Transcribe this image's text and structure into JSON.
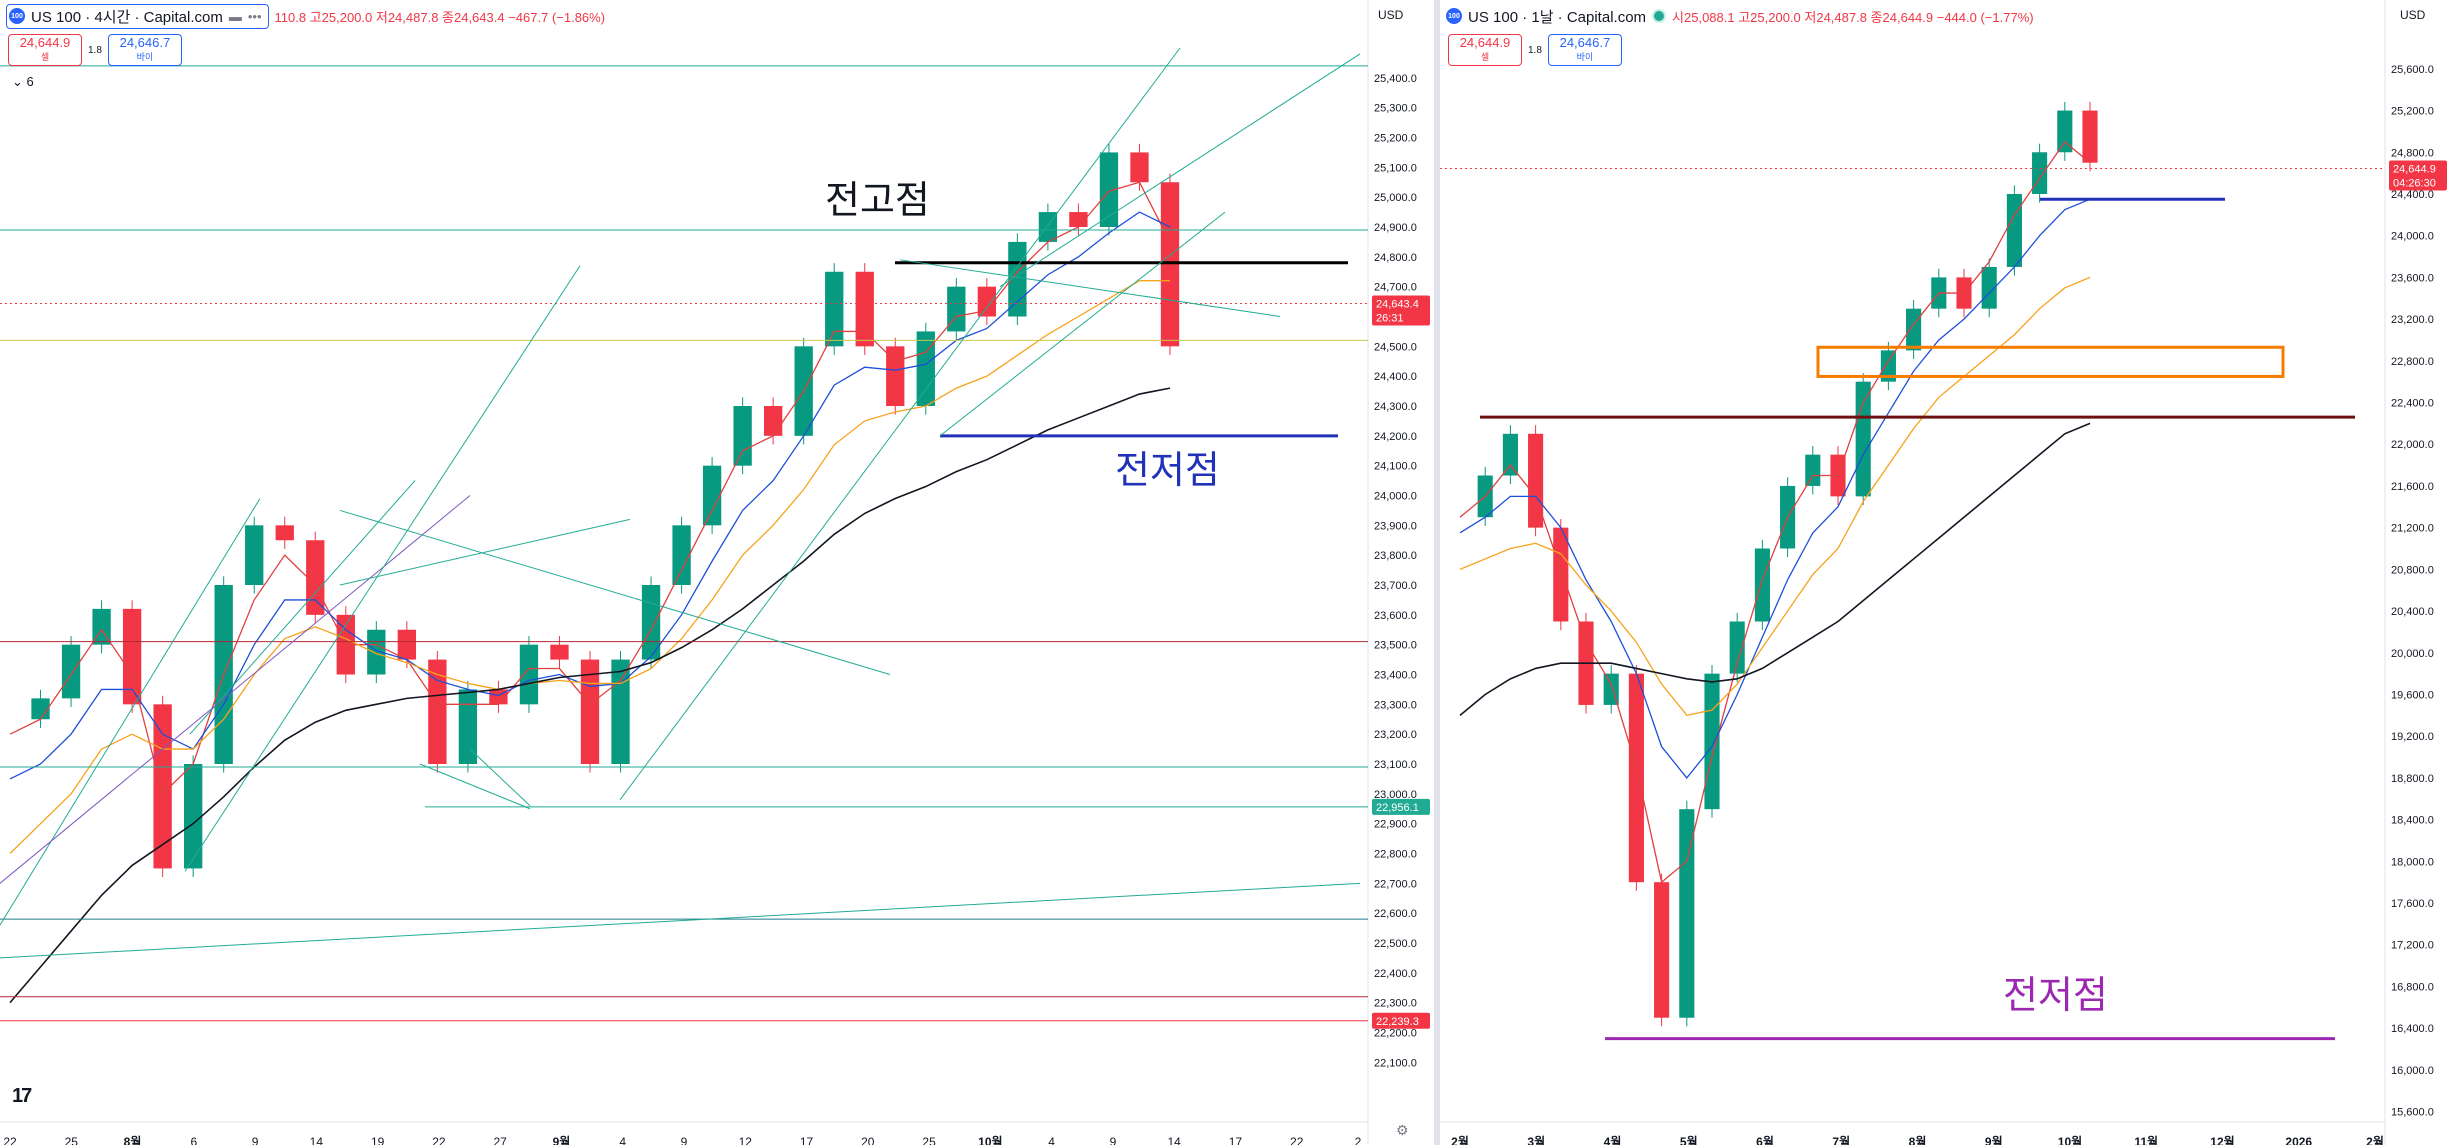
{
  "left": {
    "symbol_icon": "100",
    "title": "US 100 · 4시간 · Capital.com",
    "ohlc_text": "110.8 고25,200.0 저24,487.8 종24,643.4 −467.7 (−1.86%)",
    "sell_price": "24,644.9",
    "sell_label": "셀",
    "spread": "1.8",
    "buy_price": "24,646.7",
    "buy_label": "바이",
    "collapse_label": "6",
    "currency": "USD",
    "tv_logo": "17",
    "annotations": {
      "high": "전고점",
      "low": "전저점"
    },
    "price_badges": [
      {
        "price": "24,643.4",
        "sub": "26:31",
        "color": "#f23645"
      },
      {
        "price": "22,956.1",
        "sub": "",
        "color": "#22ab94"
      },
      {
        "price": "22,239.3",
        "sub": "",
        "color": "#f23645"
      }
    ]
  },
  "right": {
    "symbol_icon": "100",
    "title": "US 100 · 1날 · Capital.com",
    "ohlc_text": "시25,088.1 고25,200.0 저24,487.8 종24,644.9 −444.0 (−1.77%)",
    "sell_price": "24,644.9",
    "sell_label": "셀",
    "spread": "1.8",
    "buy_price": "24,646.7",
    "buy_label": "바이",
    "currency": "USD",
    "annotations": {
      "low": "전저점"
    },
    "price_badges": [
      {
        "price": "24,644.9",
        "sub": "04:26:30",
        "color": "#f23645"
      }
    ]
  },
  "chart_data": [
    {
      "type": "line",
      "title": "US 100 · 4시간 · Capital.com",
      "ylim": [
        21900,
        25500
      ],
      "y_ticks": [
        "25,400.0",
        "25,300.0",
        "25,200.0",
        "25,100.0",
        "25,000.0",
        "24,900.0",
        "24,800.0",
        "24,700.0",
        "24,600.0",
        "24,500.0",
        "24,400.0",
        "24,300.0",
        "24,200.0",
        "24,100.0",
        "24,000.0",
        "23,900.0",
        "23,800.0",
        "23,700.0",
        "23,600.0",
        "23,500.0",
        "23,400.0",
        "23,300.0",
        "23,200.0",
        "23,100.0",
        "23,000.0",
        "22,900.0",
        "22,800.0",
        "22,700.0",
        "22,600.0",
        "22,500.0",
        "22,400.0",
        "22,300.0",
        "22,200.0",
        "22,100.0"
      ],
      "x_ticks": [
        "22",
        "25",
        "8월",
        "6",
        "9",
        "14",
        "19",
        "22",
        "27",
        "9월",
        "4",
        "9",
        "12",
        "17",
        "20",
        "25",
        "10월",
        "4",
        "9",
        "14",
        "17",
        "22",
        "2"
      ],
      "series": [
        {
          "color": "#089981",
          "values": [
            23250,
            23320,
            23500,
            23620,
            23300,
            22750,
            23100,
            23700,
            23900,
            23850,
            23600,
            23400,
            23550,
            23450,
            23100,
            23350,
            23300,
            23500,
            23450,
            23100,
            23450,
            23700,
            23900,
            24100,
            24300,
            24200,
            24500,
            24750,
            24500,
            24300,
            24550,
            24700,
            24600,
            24850,
            24950,
            24900,
            25150,
            25050,
            24500
          ]
        },
        {
          "color": "#e04141",
          "values": [
            23200,
            23250,
            23400,
            23550,
            23400,
            23000,
            23100,
            23400,
            23650,
            23800,
            23700,
            23500,
            23500,
            23450,
            23300,
            23300,
            23300,
            23420,
            23420,
            23300,
            23380,
            23550,
            23750,
            23950,
            24150,
            24200,
            24350,
            24550,
            24550,
            24450,
            24480,
            24600,
            24620,
            24750,
            24850,
            24900,
            25020,
            25050,
            24850
          ]
        },
        {
          "color": "#1e4fd8",
          "values": [
            23050,
            23100,
            23200,
            23350,
            23350,
            23200,
            23150,
            23300,
            23500,
            23650,
            23650,
            23550,
            23480,
            23450,
            23380,
            23350,
            23330,
            23380,
            23400,
            23360,
            23370,
            23460,
            23600,
            23780,
            23950,
            24050,
            24200,
            24370,
            24430,
            24420,
            24440,
            24520,
            24560,
            24650,
            24740,
            24800,
            24880,
            24950,
            24900
          ]
        },
        {
          "color": "#f7a21b",
          "values": [
            22800,
            22900,
            23000,
            23150,
            23200,
            23150,
            23150,
            23250,
            23400,
            23520,
            23560,
            23520,
            23470,
            23440,
            23400,
            23370,
            23350,
            23370,
            23380,
            23370,
            23370,
            23420,
            23520,
            23650,
            23800,
            23900,
            24020,
            24170,
            24250,
            24280,
            24300,
            24360,
            24400,
            24470,
            24540,
            24600,
            24660,
            24720,
            24720
          ]
        },
        {
          "color": "#131722",
          "values": [
            22300,
            22420,
            22540,
            22660,
            22760,
            22830,
            22900,
            22990,
            23090,
            23180,
            23240,
            23280,
            23300,
            23320,
            23330,
            23340,
            23350,
            23370,
            23390,
            23400,
            23410,
            23440,
            23490,
            23550,
            23620,
            23700,
            23780,
            23870,
            23940,
            23990,
            24030,
            24080,
            24120,
            24170,
            24220,
            24260,
            24300,
            24340,
            24360
          ]
        }
      ]
    },
    {
      "type": "line",
      "title": "US 100 · 1날 · Capital.com",
      "ylim": [
        15500,
        25800
      ],
      "y_ticks": [
        "25,600.0",
        "25,200.0",
        "24,800.0",
        "24,400.0",
        "24,000.0",
        "23,600.0",
        "23,200.0",
        "22,800.0",
        "22,400.0",
        "22,000.0",
        "21,600.0",
        "21,200.0",
        "20,800.0",
        "20,400.0",
        "20,000.0",
        "19,600.0",
        "19,200.0",
        "18,800.0",
        "18,400.0",
        "18,000.0",
        "17,600.0",
        "17,200.0",
        "16,800.0",
        "16,400.0",
        "16,000.0",
        "15,600.0"
      ],
      "x_ticks": [
        "2월",
        "3월",
        "4월",
        "5월",
        "6월",
        "7월",
        "8월",
        "9월",
        "10월",
        "11월",
        "12월",
        "2026",
        "2월"
      ],
      "series": [
        {
          "color": "#089981",
          "values": [
            21300,
            21700,
            22100,
            21200,
            20300,
            19500,
            19800,
            17800,
            16500,
            18500,
            19800,
            20300,
            21000,
            21600,
            21900,
            21500,
            22600,
            22900,
            23300,
            23600,
            23300,
            23700,
            24400,
            24800,
            25200,
            24700
          ]
        },
        {
          "color": "#e04141",
          "values": [
            21300,
            21500,
            21800,
            21500,
            20800,
            20100,
            19700,
            18900,
            17800,
            18000,
            19000,
            19900,
            20700,
            21300,
            21700,
            21700,
            22400,
            22800,
            23150,
            23450,
            23450,
            23750,
            24200,
            24550,
            24900,
            24700
          ]
        },
        {
          "color": "#1e4fd8",
          "values": [
            21150,
            21300,
            21500,
            21500,
            21200,
            20700,
            20300,
            19800,
            19100,
            18800,
            19100,
            19600,
            20150,
            20700,
            21150,
            21400,
            21900,
            22300,
            22700,
            23000,
            23200,
            23450,
            23700,
            24000,
            24250,
            24350
          ]
        },
        {
          "color": "#f7a21b",
          "values": [
            20800,
            20900,
            21000,
            21050,
            20950,
            20650,
            20400,
            20100,
            19700,
            19400,
            19450,
            19700,
            20050,
            20400,
            20750,
            21000,
            21450,
            21800,
            22150,
            22450,
            22650,
            22850,
            23050,
            23300,
            23500,
            23600
          ]
        },
        {
          "color": "#131722",
          "values": [
            19400,
            19600,
            19750,
            19850,
            19900,
            19900,
            19900,
            19850,
            19800,
            19750,
            19720,
            19750,
            19850,
            20000,
            20150,
            20300,
            20500,
            20700,
            20900,
            21100,
            21300,
            21500,
            21700,
            21900,
            22100,
            22200
          ]
        }
      ]
    }
  ]
}
